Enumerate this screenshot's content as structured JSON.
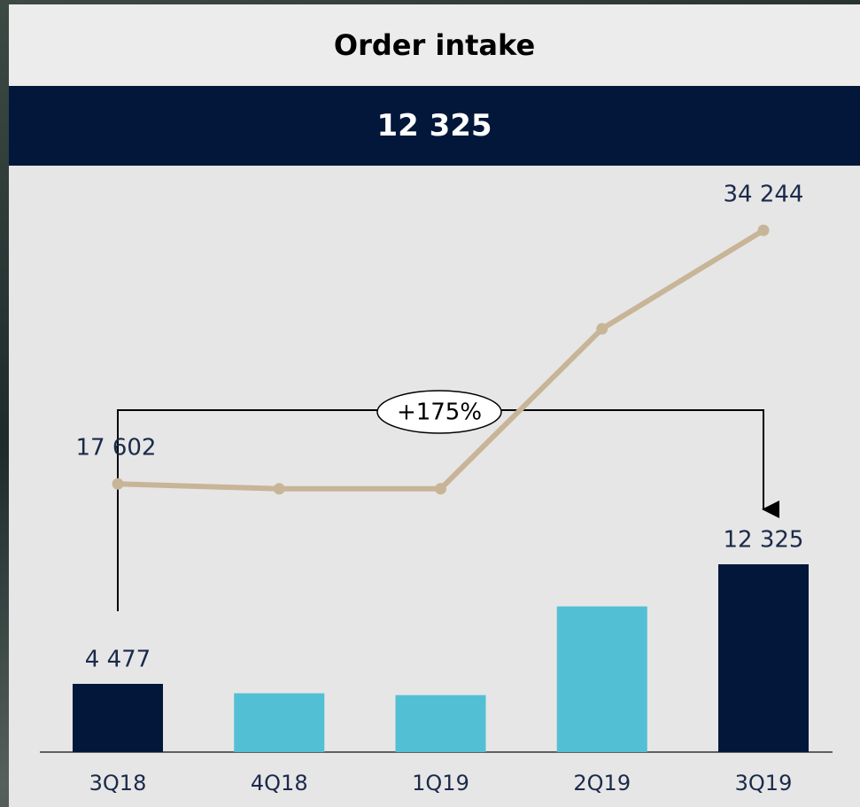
{
  "header": {
    "title": "Order intake",
    "headline": "12 325"
  },
  "chart_data": {
    "type": "bar_line",
    "categories": [
      "3Q18",
      "4Q18",
      "1Q19",
      "2Q19",
      "3Q19"
    ],
    "values": [
      4477,
      3860,
      3740,
      9560,
      12325
    ],
    "value_labels": [
      "4 477",
      null,
      null,
      null,
      "12 325"
    ],
    "colors": [
      "#02173a",
      "#52bfd4",
      "#52bfd4",
      "#52bfd4",
      "#02173a"
    ],
    "line_values": [
      17602,
      17280,
      17280,
      27780,
      34244
    ],
    "line_value_labels": [
      "17 602",
      null,
      null,
      null,
      "34 244"
    ],
    "line_color": "#c8b597",
    "annotation": "+175%"
  }
}
